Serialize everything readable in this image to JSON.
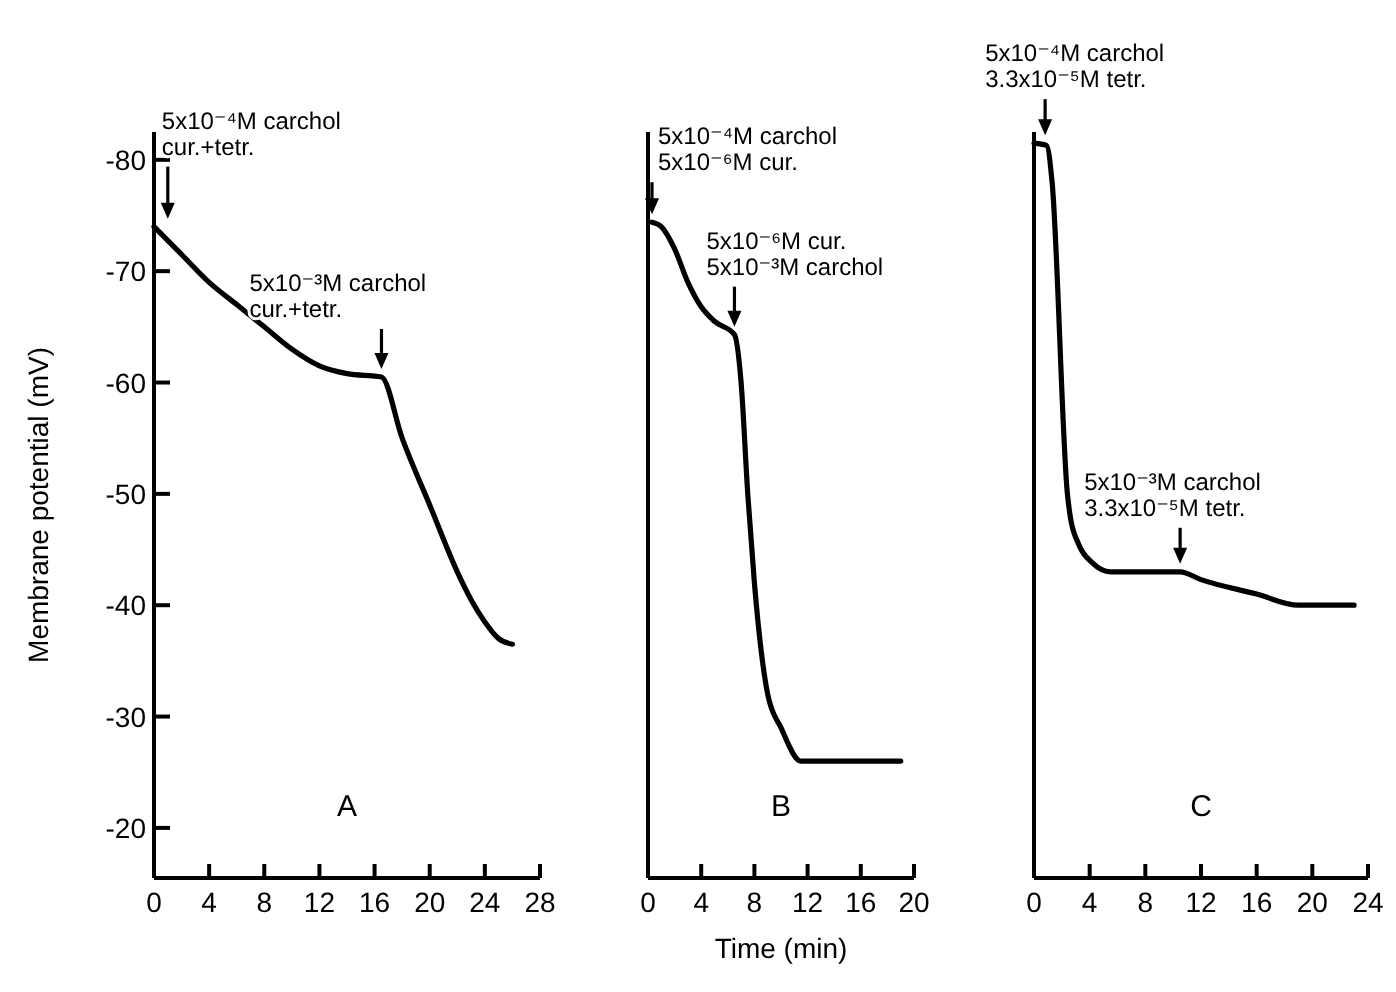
{
  "chart_data": [
    {
      "type": "line",
      "ylabel": "Membrane potential (mV)",
      "xlim": [
        0,
        28
      ],
      "xticks": [
        0,
        4,
        8,
        12,
        16,
        20,
        24,
        28
      ],
      "ylim": [
        -15.5,
        -82.5
      ],
      "yticks": [
        -80,
        -70,
        -60,
        -50,
        -40,
        -30,
        -20
      ],
      "marker": "none",
      "line_style": "solid",
      "series": [
        {
          "color": "#000000",
          "x": [
            0,
            2,
            4,
            6,
            8,
            10,
            12,
            14,
            16.5,
            18,
            20,
            22,
            23,
            24,
            25,
            26
          ],
          "values": [
            -74,
            -71.5,
            -69,
            -67,
            -65,
            -63,
            -61.5,
            -60.8,
            -60.5,
            -55,
            -49,
            -43,
            -40.5,
            -38.5,
            -37,
            -36.5
          ]
        }
      ],
      "annotations": [
        {
          "text": "5x10⁻⁴M carchol\ncur.+tetr.",
          "x": 1,
          "y": -74
        },
        {
          "text": "5x10⁻³M carchol\ncur.+tetr.",
          "x": 16.5,
          "y": -60.5
        },
        "A"
      ]
    },
    {
      "type": "line",
      "xlabel": "Time (min)",
      "xlim": [
        0,
        20
      ],
      "xticks": [
        0,
        4,
        8,
        12,
        16,
        20
      ],
      "ylim": [
        -15.5,
        -82.5
      ],
      "tick_labels": "x",
      "marker": "none",
      "line_style": "solid",
      "series": [
        {
          "color": "#000000",
          "x": [
            0.3,
            1,
            2,
            3,
            4,
            5,
            6.5,
            7,
            7.5,
            8,
            8.5,
            9,
            10,
            11.5,
            19
          ],
          "values": [
            -74.4,
            -74,
            -72,
            -69,
            -66.8,
            -65.5,
            -64.3,
            -60,
            -50,
            -42,
            -36,
            -32,
            -29,
            -26,
            -26
          ]
        }
      ],
      "annotations": [
        {
          "text": "5x10⁻⁴M carchol\n5x10⁻⁶M cur.",
          "x": 0.3,
          "y": -74.4
        },
        {
          "text": "5x10⁻⁶M cur.\n5x10⁻³M carchol",
          "x": 6.5,
          "y": -64.3
        },
        "B"
      ]
    },
    {
      "type": "line",
      "xlim": [
        0,
        24
      ],
      "xticks": [
        0,
        4,
        8,
        12,
        16,
        20,
        24
      ],
      "ylim": [
        -15.5,
        -82.5
      ],
      "tick_labels": "x",
      "marker": "none",
      "line_style": "solid",
      "series": [
        {
          "color": "#000000",
          "x": [
            0,
            0.9,
            1.3,
            2.4,
            2.6,
            3.2,
            4.2,
            5.5,
            8,
            10.5,
            12,
            16,
            19,
            23
          ],
          "values": [
            -81.5,
            -81.3,
            -78,
            -50,
            -48,
            -45.5,
            -43.8,
            -43,
            -43,
            -43,
            -42.3,
            -41,
            -40,
            -40
          ]
        }
      ],
      "annotations": [
        {
          "text": "5x10⁻⁴M carchol\n3.3x10⁻⁵M tetr.",
          "x": 0.8,
          "y": -81.5
        },
        {
          "text": "5x10⁻³M carchol\n3.3x10⁻⁵M tetr.",
          "x": 10.5,
          "y": -43
        },
        "C"
      ]
    }
  ]
}
